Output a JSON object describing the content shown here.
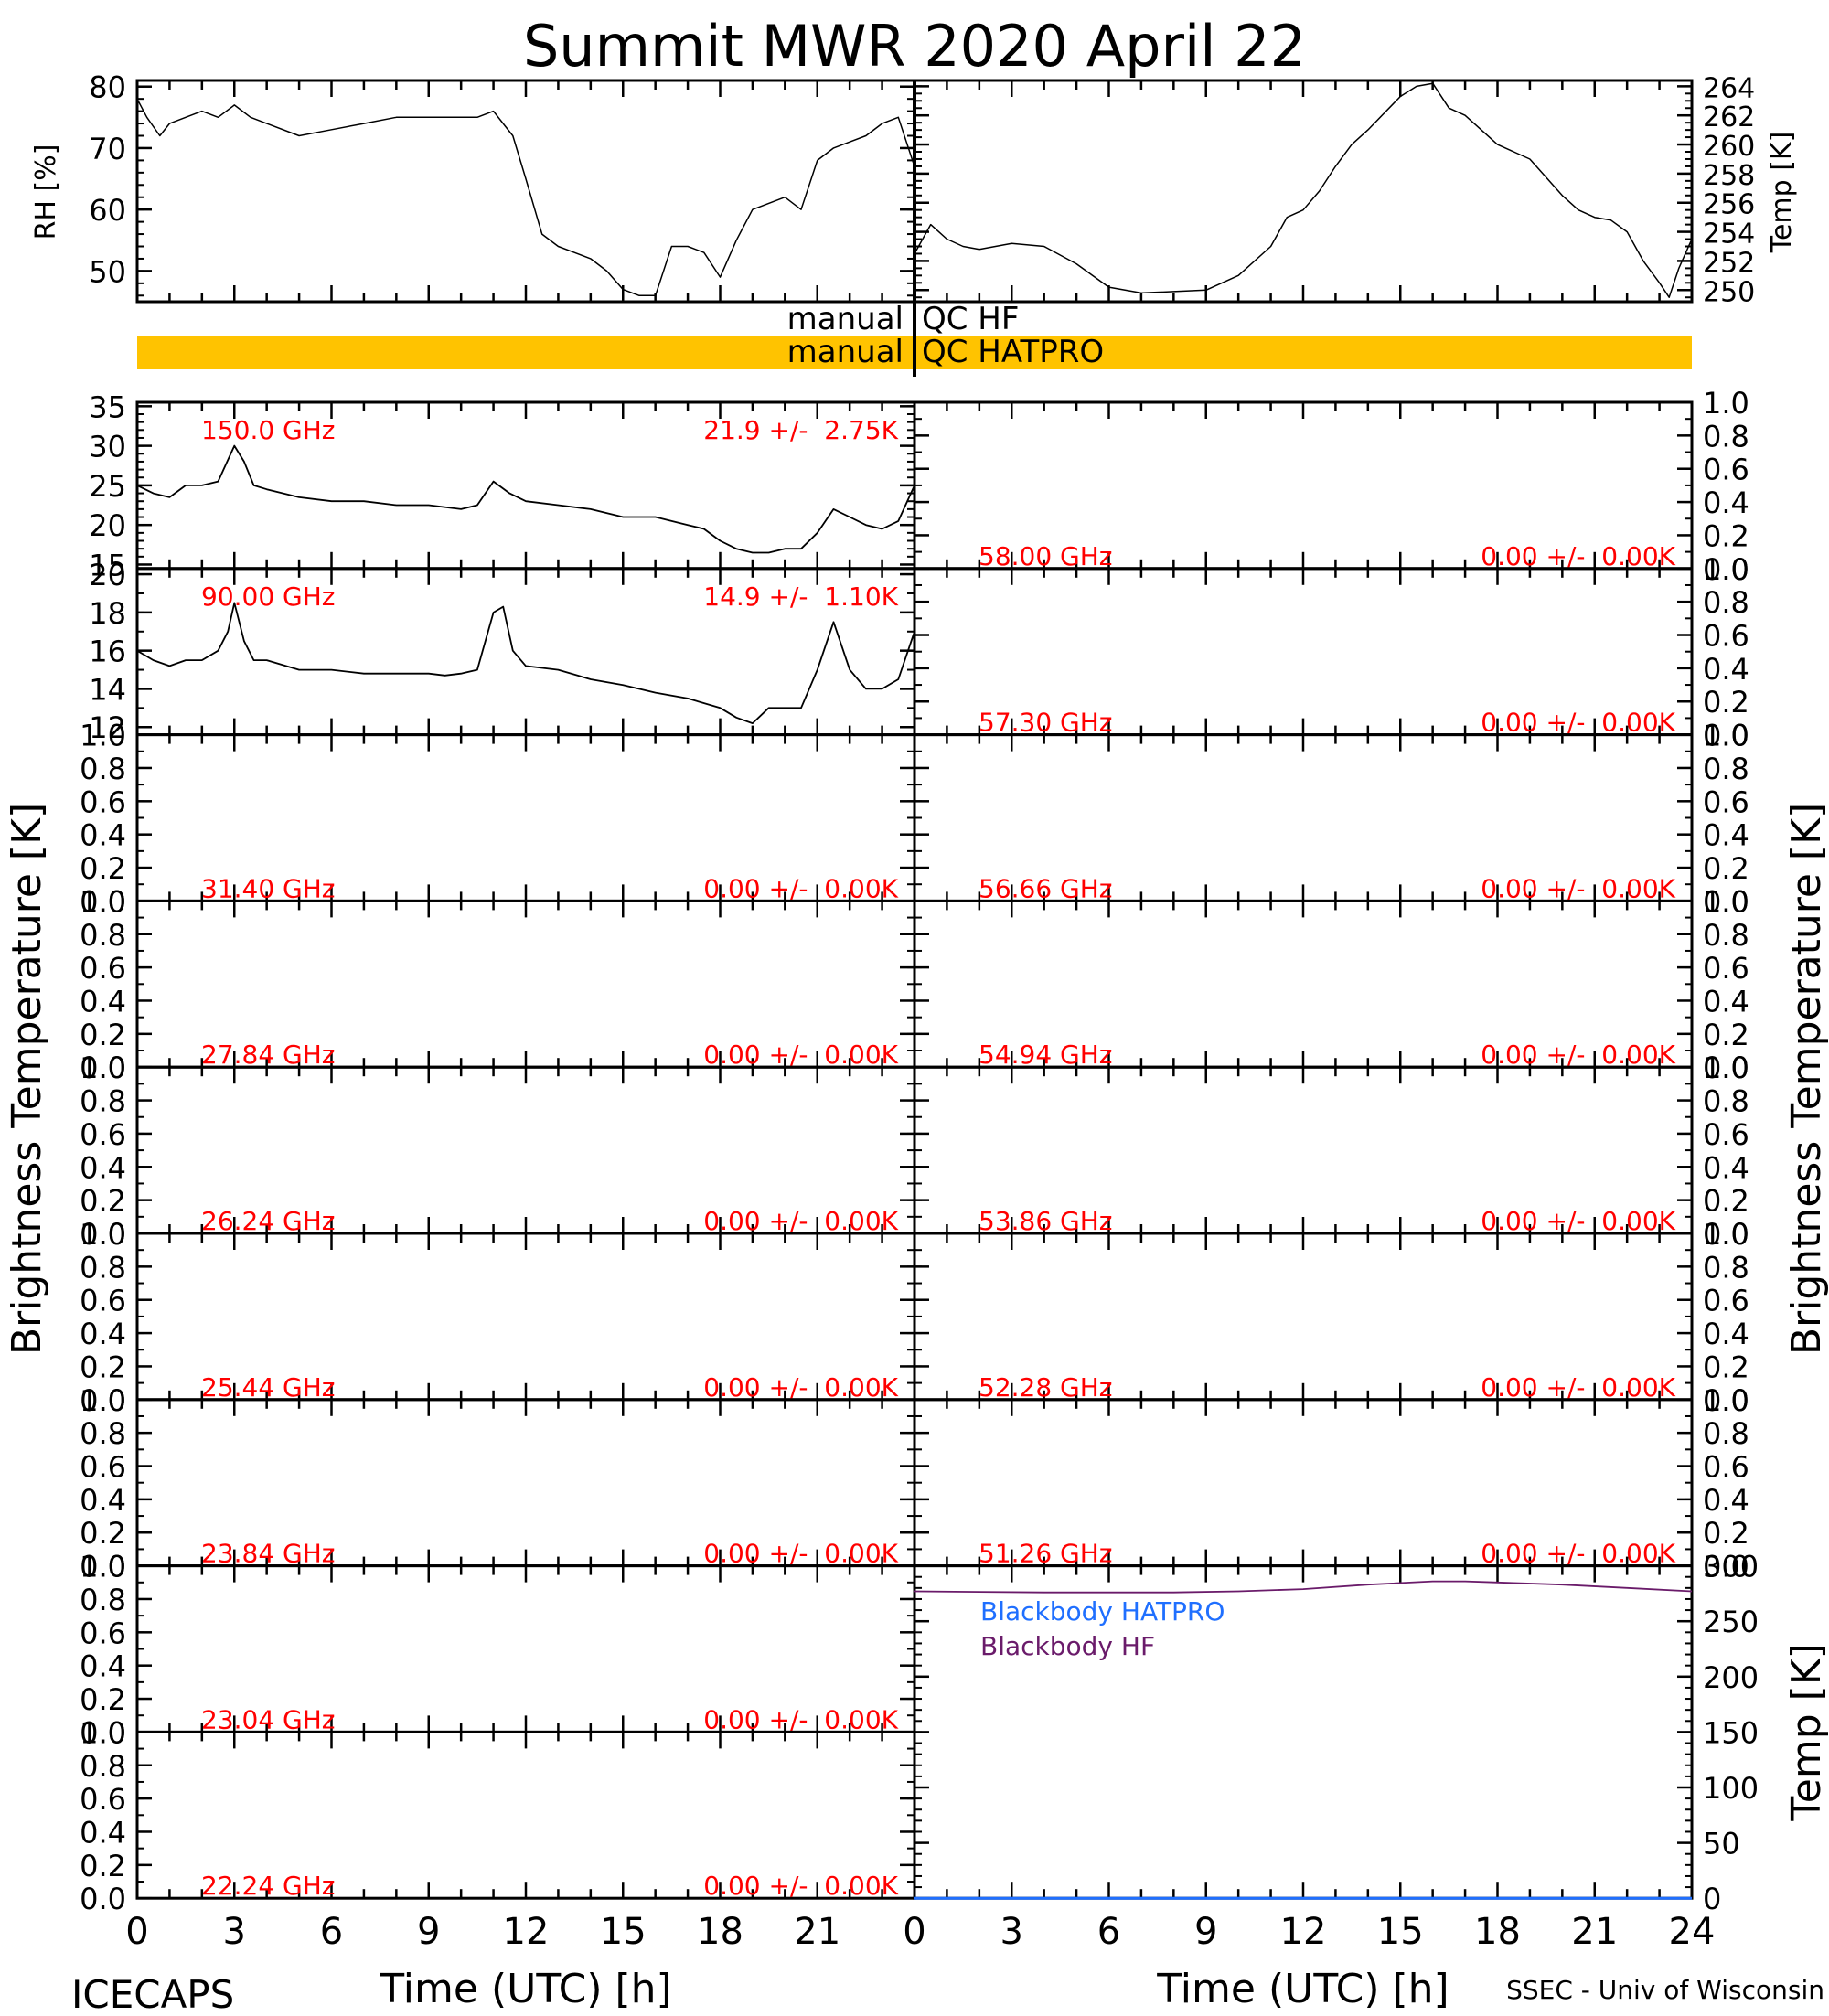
{
  "page": {
    "title": "Summit MWR 2020 April 22",
    "footer_left": "ICECAPS",
    "footer_right": "SSEC - Univ of Wisconsin",
    "bt_axis_label": "Brightness Temperature [K]",
    "x_axis_label": "Time (UTC) [h]"
  },
  "colors": {
    "axis": "#000000",
    "channel_label": "#ff0000",
    "qc_bar": "#ffc300",
    "blackbody_hatpro": "#1f6fff",
    "blackbody_hf": "#6a1b6a"
  },
  "chart_data": [
    {
      "id": "rh",
      "type": "line",
      "ylabel": "RH [%]",
      "xlim": [
        0,
        24
      ],
      "ylim": [
        45,
        81
      ],
      "yticks": [
        50,
        60,
        70,
        80
      ],
      "x": [
        0,
        0.3,
        0.7,
        1,
        1.5,
        2,
        2.5,
        3,
        3.5,
        4,
        5,
        6,
        7,
        8,
        9,
        10,
        10.5,
        11,
        11.3,
        11.6,
        12,
        12.5,
        13,
        13.5,
        14,
        14.5,
        15,
        15.5,
        16,
        16.5,
        17,
        17.5,
        18,
        18.5,
        19,
        19.5,
        20,
        20.5,
        21,
        21.5,
        22,
        22.5,
        23,
        23.5,
        24
      ],
      "y": [
        78,
        75,
        72,
        74,
        75,
        76,
        75,
        77,
        75,
        74,
        72,
        73,
        74,
        75,
        75,
        75,
        75,
        76,
        74,
        72,
        65,
        56,
        54,
        53,
        52,
        50,
        47,
        46,
        46,
        54,
        54,
        53,
        49,
        55,
        60,
        61,
        62,
        60,
        68,
        70,
        71,
        72,
        74,
        75,
        67
      ]
    },
    {
      "id": "temp",
      "type": "line",
      "ylabel": "Temp [K]",
      "xlim": [
        0,
        24
      ],
      "ylim": [
        249.2,
        264.4
      ],
      "yticks": [
        250,
        252,
        254,
        256,
        258,
        260,
        262,
        264
      ],
      "x": [
        0,
        0.5,
        1,
        1.5,
        2,
        3,
        4,
        5,
        6,
        7,
        8,
        9,
        10,
        11,
        11.5,
        12,
        12.5,
        13,
        13.5,
        14,
        15,
        15.5,
        16,
        16.5,
        17,
        17.5,
        18,
        18.5,
        19,
        20,
        20.5,
        21,
        21.5,
        22,
        22.5,
        23,
        23.3,
        23.6,
        24
      ],
      "y": [
        252.5,
        254.5,
        253.5,
        253,
        252.8,
        253.2,
        253,
        251.8,
        250.2,
        249.8,
        249.9,
        250,
        251,
        253,
        255,
        255.5,
        256.8,
        258.5,
        260,
        261,
        263.3,
        264,
        264.2,
        262.5,
        262,
        261,
        260,
        259.5,
        259,
        256.5,
        255.5,
        255,
        254.8,
        254,
        252,
        250.5,
        249.5,
        251.5,
        253.5
      ]
    },
    {
      "id": "tb-150",
      "type": "line",
      "side": "left",
      "channel": "150.0 GHz",
      "stats": "21.9 +/-  2.75K",
      "xlim": [
        0,
        24
      ],
      "ylim": [
        14.5,
        35.5
      ],
      "yticks": [
        15,
        20,
        25,
        30,
        35
      ],
      "x": [
        0,
        0.5,
        1,
        1.5,
        2,
        2.5,
        3,
        3.3,
        3.6,
        4,
        5,
        6,
        7,
        8,
        9,
        10,
        10.5,
        11,
        11.5,
        12,
        13,
        14,
        15,
        16,
        17,
        17.5,
        18,
        18.5,
        19,
        19.5,
        20,
        20.5,
        21,
        21.5,
        22,
        22.5,
        23,
        23.5,
        24
      ],
      "y": [
        25,
        24,
        23.5,
        25,
        25,
        25.5,
        30,
        28,
        25,
        24.5,
        23.5,
        23,
        23,
        22.5,
        22.5,
        22,
        22.5,
        25.5,
        24,
        23,
        22.5,
        22,
        21,
        21,
        20,
        19.5,
        18,
        17,
        16.5,
        16.5,
        17,
        17,
        19,
        22,
        21,
        20,
        19.5,
        20.5,
        25
      ]
    },
    {
      "id": "tb-90",
      "type": "line",
      "side": "left",
      "channel": "90.00 GHz",
      "stats": "14.9 +/-  1.10K",
      "xlim": [
        0,
        24
      ],
      "ylim": [
        11.6,
        20.3
      ],
      "yticks": [
        12,
        14,
        16,
        18,
        20
      ],
      "x": [
        0,
        0.5,
        1,
        1.5,
        2,
        2.5,
        2.8,
        3,
        3.3,
        3.6,
        4,
        5,
        6,
        7,
        8,
        9,
        9.5,
        10,
        10.5,
        11,
        11.3,
        11.6,
        12,
        13,
        14,
        15,
        16,
        17,
        18,
        18.5,
        19,
        19.5,
        20,
        20.5,
        21,
        21.5,
        22,
        22.5,
        23,
        23.5,
        24
      ],
      "y": [
        16,
        15.5,
        15.2,
        15.5,
        15.5,
        16,
        17,
        18.5,
        16.5,
        15.5,
        15.5,
        15,
        15,
        14.8,
        14.8,
        14.8,
        14.7,
        14.8,
        15,
        18,
        18.3,
        16,
        15.2,
        15,
        14.5,
        14.2,
        13.8,
        13.5,
        13,
        12.5,
        12.2,
        13,
        13,
        13,
        15,
        17.5,
        15,
        14,
        14,
        14.5,
        17
      ]
    },
    {
      "id": "ch-314",
      "type": "line",
      "side": "left",
      "channel": "31.40 GHz",
      "stats": "0.00 +/-  0.00K",
      "ylim": [
        0,
        1
      ],
      "yticks": [
        0,
        0.2,
        0.4,
        0.6,
        0.8,
        1.0
      ]
    },
    {
      "id": "ch-2784",
      "type": "line",
      "side": "left",
      "channel": "27.84 GHz",
      "stats": "0.00 +/-  0.00K",
      "ylim": [
        0,
        1
      ],
      "yticks": [
        0,
        0.2,
        0.4,
        0.6,
        0.8,
        1.0
      ]
    },
    {
      "id": "ch-2624",
      "type": "line",
      "side": "left",
      "channel": "26.24 GHz",
      "stats": "0.00 +/-  0.00K",
      "ylim": [
        0,
        1
      ],
      "yticks": [
        0,
        0.2,
        0.4,
        0.6,
        0.8,
        1.0
      ]
    },
    {
      "id": "ch-2544",
      "type": "line",
      "side": "left",
      "channel": "25.44 GHz",
      "stats": "0.00 +/-  0.00K",
      "ylim": [
        0,
        1
      ],
      "yticks": [
        0,
        0.2,
        0.4,
        0.6,
        0.8,
        1.0
      ]
    },
    {
      "id": "ch-2384",
      "type": "line",
      "side": "left",
      "channel": "23.84 GHz",
      "stats": "0.00 +/-  0.00K",
      "ylim": [
        0,
        1
      ],
      "yticks": [
        0,
        0.2,
        0.4,
        0.6,
        0.8,
        1.0
      ]
    },
    {
      "id": "ch-2304",
      "type": "line",
      "side": "left",
      "channel": "23.04 GHz",
      "stats": "0.00 +/-  0.00K",
      "ylim": [
        0,
        1
      ],
      "yticks": [
        0,
        0.2,
        0.4,
        0.6,
        0.8,
        1.0
      ]
    },
    {
      "id": "ch-2224",
      "type": "line",
      "side": "left",
      "channel": "22.24 GHz",
      "stats": "0.00 +/-  0.00K",
      "ylim": [
        0,
        1
      ],
      "yticks": [
        0,
        0.2,
        0.4,
        0.6,
        0.8,
        1.0
      ],
      "xticks": [
        0,
        3,
        6,
        9,
        12,
        15,
        18,
        21
      ]
    },
    {
      "id": "ch-5800",
      "type": "line",
      "side": "right",
      "channel": "58.00 GHz",
      "stats": "0.00 +/-  0.00K",
      "ylim": [
        0,
        1
      ],
      "yticks": [
        0,
        0.2,
        0.4,
        0.6,
        0.8,
        1.0
      ]
    },
    {
      "id": "ch-5730",
      "type": "line",
      "side": "right",
      "channel": "57.30 GHz",
      "stats": "0.00 +/-  0.00K",
      "ylim": [
        0,
        1
      ],
      "yticks": [
        0,
        0.2,
        0.4,
        0.6,
        0.8,
        1.0
      ]
    },
    {
      "id": "ch-5666",
      "type": "line",
      "side": "right",
      "channel": "56.66 GHz",
      "stats": "0.00 +/-  0.00K",
      "ylim": [
        0,
        1
      ],
      "yticks": [
        0,
        0.2,
        0.4,
        0.6,
        0.8,
        1.0
      ]
    },
    {
      "id": "ch-5494",
      "type": "line",
      "side": "right",
      "channel": "54.94 GHz",
      "stats": "0.00 +/-  0.00K",
      "ylim": [
        0,
        1
      ],
      "yticks": [
        0,
        0.2,
        0.4,
        0.6,
        0.8,
        1.0
      ]
    },
    {
      "id": "ch-5386",
      "type": "line",
      "side": "right",
      "channel": "53.86 GHz",
      "stats": "0.00 +/-  0.00K",
      "ylim": [
        0,
        1
      ],
      "yticks": [
        0,
        0.2,
        0.4,
        0.6,
        0.8,
        1.0
      ]
    },
    {
      "id": "ch-5228",
      "type": "line",
      "side": "right",
      "channel": "52.28 GHz",
      "stats": "0.00 +/-  0.00K",
      "ylim": [
        0,
        1
      ],
      "yticks": [
        0,
        0.2,
        0.4,
        0.6,
        0.8,
        1.0
      ]
    },
    {
      "id": "ch-5126",
      "type": "line",
      "side": "right",
      "channel": "51.26 GHz",
      "stats": "0.00 +/-  0.00K",
      "ylim": [
        0,
        1
      ],
      "yticks": [
        0,
        0.2,
        0.4,
        0.6,
        0.8,
        1.0
      ]
    },
    {
      "id": "blackbody",
      "type": "line",
      "ylabel": "Temp [K]",
      "xlim": [
        0,
        24
      ],
      "ylim": [
        0,
        300
      ],
      "yticks": [
        0,
        50,
        100,
        150,
        200,
        250,
        300
      ],
      "xticks": [
        0,
        3,
        6,
        9,
        12,
        15,
        18,
        21,
        24
      ],
      "series": [
        {
          "name": "Blackbody HATPRO",
          "x": [
            0,
            24
          ],
          "y": [
            0,
            0
          ]
        },
        {
          "name": "Blackbody HF",
          "x": [
            0,
            2,
            4,
            6,
            8,
            10,
            12,
            14,
            16,
            17,
            18,
            20,
            22,
            24
          ],
          "y": [
            277,
            276.5,
            276,
            276,
            276,
            277,
            279,
            283,
            286,
            286,
            285,
            283,
            280,
            277
          ]
        }
      ]
    }
  ],
  "qc": {
    "row1_left": "manual",
    "row1_right": "QC HF",
    "row2_left": "manual",
    "row2_right": "QC HATPRO"
  }
}
